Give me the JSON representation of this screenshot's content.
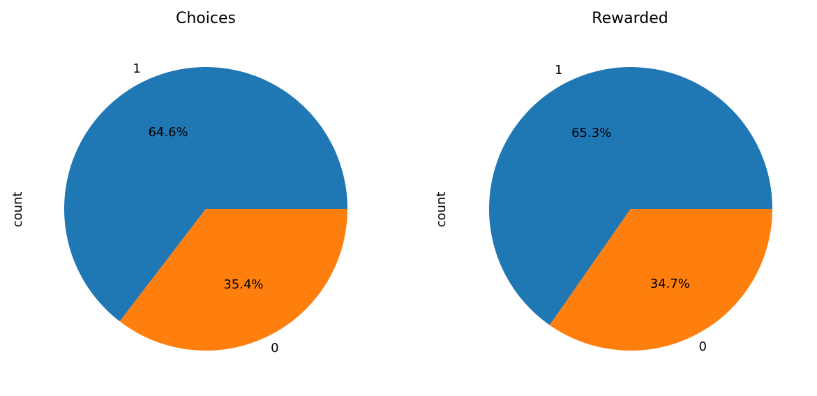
{
  "chart_data": [
    {
      "type": "pie",
      "title": "Choices",
      "ylabel": "count",
      "categories": [
        "1",
        "0"
      ],
      "values": [
        64.6,
        35.4
      ],
      "value_labels": [
        "64.6%",
        "35.4%"
      ],
      "colors": [
        "#1f77b4",
        "#ff7f0e"
      ]
    },
    {
      "type": "pie",
      "title": "Rewarded",
      "ylabel": "count",
      "categories": [
        "1",
        "0"
      ],
      "values": [
        65.3,
        34.7
      ],
      "value_labels": [
        "65.3%",
        "34.7%"
      ],
      "colors": [
        "#1f77b4",
        "#ff7f0e"
      ]
    }
  ]
}
